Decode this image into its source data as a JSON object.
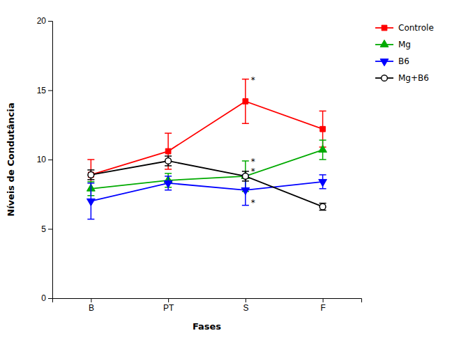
{
  "chart_data": {
    "type": "line",
    "xlabel": "Fases",
    "ylabel": "Níveis de Condutância",
    "categories": [
      "B",
      "PT",
      "S",
      "F"
    ],
    "series": [
      {
        "name": "Controle",
        "color": "#ff0000",
        "marker": "square",
        "values": [
          8.9,
          10.6,
          14.2,
          12.2
        ],
        "errors": [
          1.1,
          1.3,
          1.6,
          1.3
        ]
      },
      {
        "name": "Mg",
        "color": "#00aa00",
        "marker": "triangle-up",
        "values": [
          7.9,
          8.5,
          8.8,
          10.7
        ],
        "errors": [
          0.5,
          0.5,
          1.1,
          0.7
        ]
      },
      {
        "name": "B6",
        "color": "#0000ff",
        "marker": "triangle-down",
        "values": [
          7.0,
          8.3,
          7.8,
          8.4
        ],
        "errors": [
          1.3,
          0.5,
          1.1,
          0.5
        ]
      },
      {
        "name": "Mg+B6",
        "color": "#000000",
        "marker": "circle-open",
        "values": [
          8.9,
          9.9,
          8.8,
          6.6
        ],
        "errors": [
          0.35,
          0.35,
          0.35,
          0.25
        ]
      }
    ],
    "annotations": [
      {
        "x": "S",
        "y": 15.7,
        "text": "*"
      },
      {
        "x": "S",
        "y": 9.8,
        "text": "*"
      },
      {
        "x": "S",
        "y": 9.1,
        "text": "*"
      },
      {
        "x": "S",
        "y": 6.85,
        "text": "*"
      }
    ],
    "ylim": [
      0,
      20
    ],
    "yticks": [
      0,
      5,
      10,
      15,
      20
    ],
    "grid": false,
    "legend": "right"
  }
}
